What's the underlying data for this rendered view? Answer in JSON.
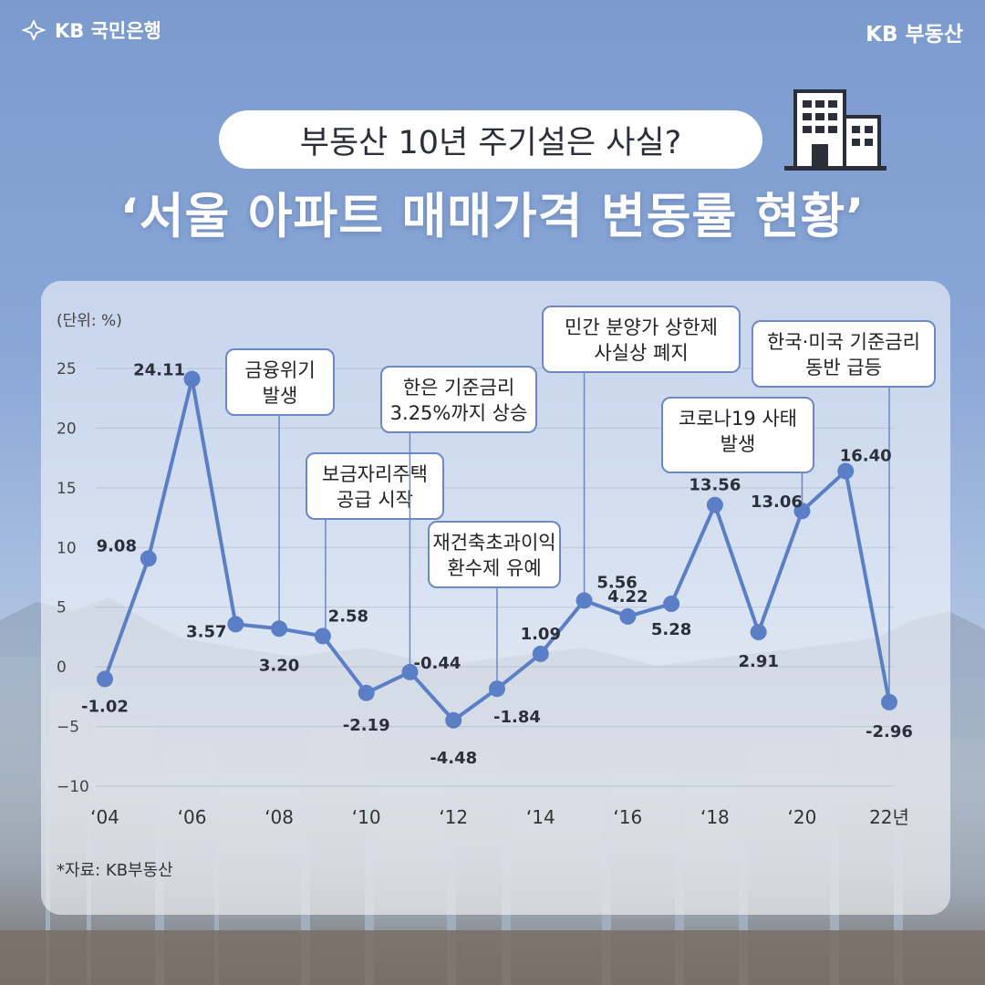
{
  "header": {
    "brand_left": "KB 국민은행",
    "brand_right": "KB 부동산",
    "subtitle": "부동산 10년 주기설은 사실?",
    "title": "‘서울 아파트 매매가격 변동률 현황’",
    "building_icon": "building-icon"
  },
  "chart_data": {
    "type": "line",
    "title": "서울 아파트 매매가격 변동률 현황",
    "ylabel": "(단위: %)",
    "xlabel": "",
    "ylim": [
      -10,
      25
    ],
    "yticks": [
      25,
      20,
      15,
      10,
      5,
      0,
      -5,
      -10
    ],
    "ytick_labels": [
      "25",
      "20",
      "15",
      "10",
      "5",
      "0",
      "−5",
      "−10"
    ],
    "x": [
      2004,
      2005,
      2006,
      2007,
      2008,
      2009,
      2010,
      2011,
      2012,
      2013,
      2014,
      2015,
      2016,
      2017,
      2018,
      2019,
      2020,
      2021,
      2022
    ],
    "xticks": [
      2004,
      2006,
      2008,
      2010,
      2012,
      2014,
      2016,
      2018,
      2020,
      2022
    ],
    "xtick_labels": [
      "‘04",
      "‘06",
      "‘08",
      "‘10",
      "‘12",
      "‘14",
      "‘16",
      "‘18",
      "‘20",
      "22년"
    ],
    "values": [
      -1.02,
      9.08,
      24.11,
      3.57,
      3.2,
      2.58,
      -2.19,
      -0.44,
      -4.48,
      -1.84,
      1.09,
      5.56,
      4.22,
      5.28,
      13.56,
      2.91,
      13.06,
      16.4,
      -2.96
    ],
    "data_labels": [
      "-1.02",
      "9.08",
      "24.11",
      "3.57",
      "3.20",
      "2.58",
      "-2.19",
      "-0.44",
      "-4.48",
      "-1.84",
      "1.09",
      "5.56",
      "4.22",
      "5.28",
      "13.56",
      "2.91",
      "13.06",
      "16.40",
      "-2.96"
    ],
    "line_color": "#5b7fc7",
    "grid": true,
    "annotations": [
      {
        "x": 2008,
        "lines": [
          "금융위기",
          "발생"
        ]
      },
      {
        "x": 2009,
        "lines": [
          "보금자리주택",
          "공급 시작"
        ]
      },
      {
        "x": 2011,
        "lines": [
          "한은 기준금리",
          "3.25%까지 상승"
        ]
      },
      {
        "x": 2013,
        "lines": [
          "재건축초과이익",
          "환수제 유예"
        ]
      },
      {
        "x": 2015,
        "lines": [
          "민간 분양가 상한제",
          "사실상 폐지"
        ]
      },
      {
        "x": 2020,
        "lines": [
          "코로나19 사태",
          "발생"
        ]
      },
      {
        "x": 2022,
        "lines": [
          "한국·미국 기준금리",
          "동반 급등"
        ]
      }
    ]
  },
  "footer": {
    "source": "*자료: KB부동산"
  }
}
